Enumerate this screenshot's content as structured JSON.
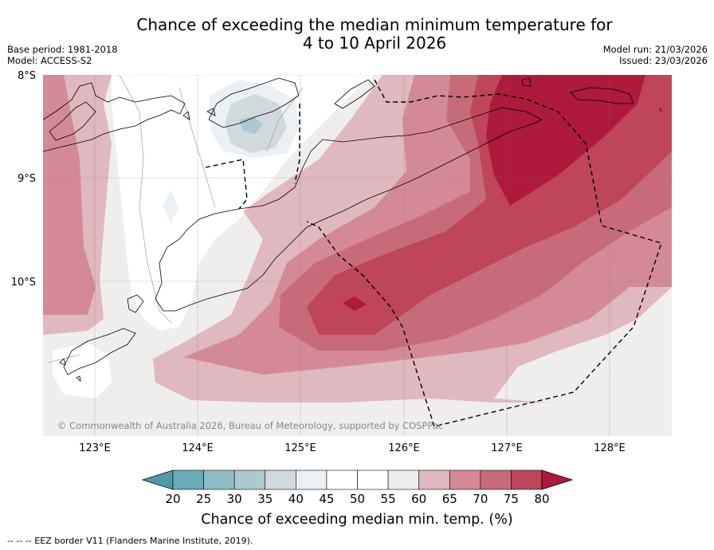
{
  "header": {
    "title_line1": "Chance of exceeding the median minimum temperature for",
    "title_line2": "4 to 10 April 2026",
    "base_period": "Base period: 1981-2018",
    "model": "Model: ACCESS-S2",
    "model_run": "Model run: 21/03/2026",
    "issued": "Issued: 23/03/2026"
  },
  "map": {
    "lat_labels": [
      "8°S",
      "9°S",
      "10°S"
    ],
    "lon_labels": [
      "123°E",
      "124°E",
      "125°E",
      "126°E",
      "127°E",
      "128°E"
    ],
    "copyright": "© Commonwealth of Australia 2026, Bureau of Meteorology, supported by COSPPac"
  },
  "colorbar": {
    "labels": [
      "20",
      "25",
      "30",
      "35",
      "40",
      "45",
      "50",
      "55",
      "60",
      "65",
      "70",
      "75",
      "80"
    ],
    "colors": [
      "#4f9aaa",
      "#6aabb8",
      "#8ebdc5",
      "#abc9ce",
      "#d0d9dc",
      "#eaf0f3",
      "#ffffff",
      "#ffffff",
      "#efeeed",
      "#e0b8bf",
      "#d48a96",
      "#c86b79",
      "#be4658",
      "#ad1a3b"
    ],
    "title": "Chance of exceeding median min. temp. (%)"
  },
  "footnote": "--  --  -- EEZ border V11 (Flanders Marine Institute, 2019)."
}
